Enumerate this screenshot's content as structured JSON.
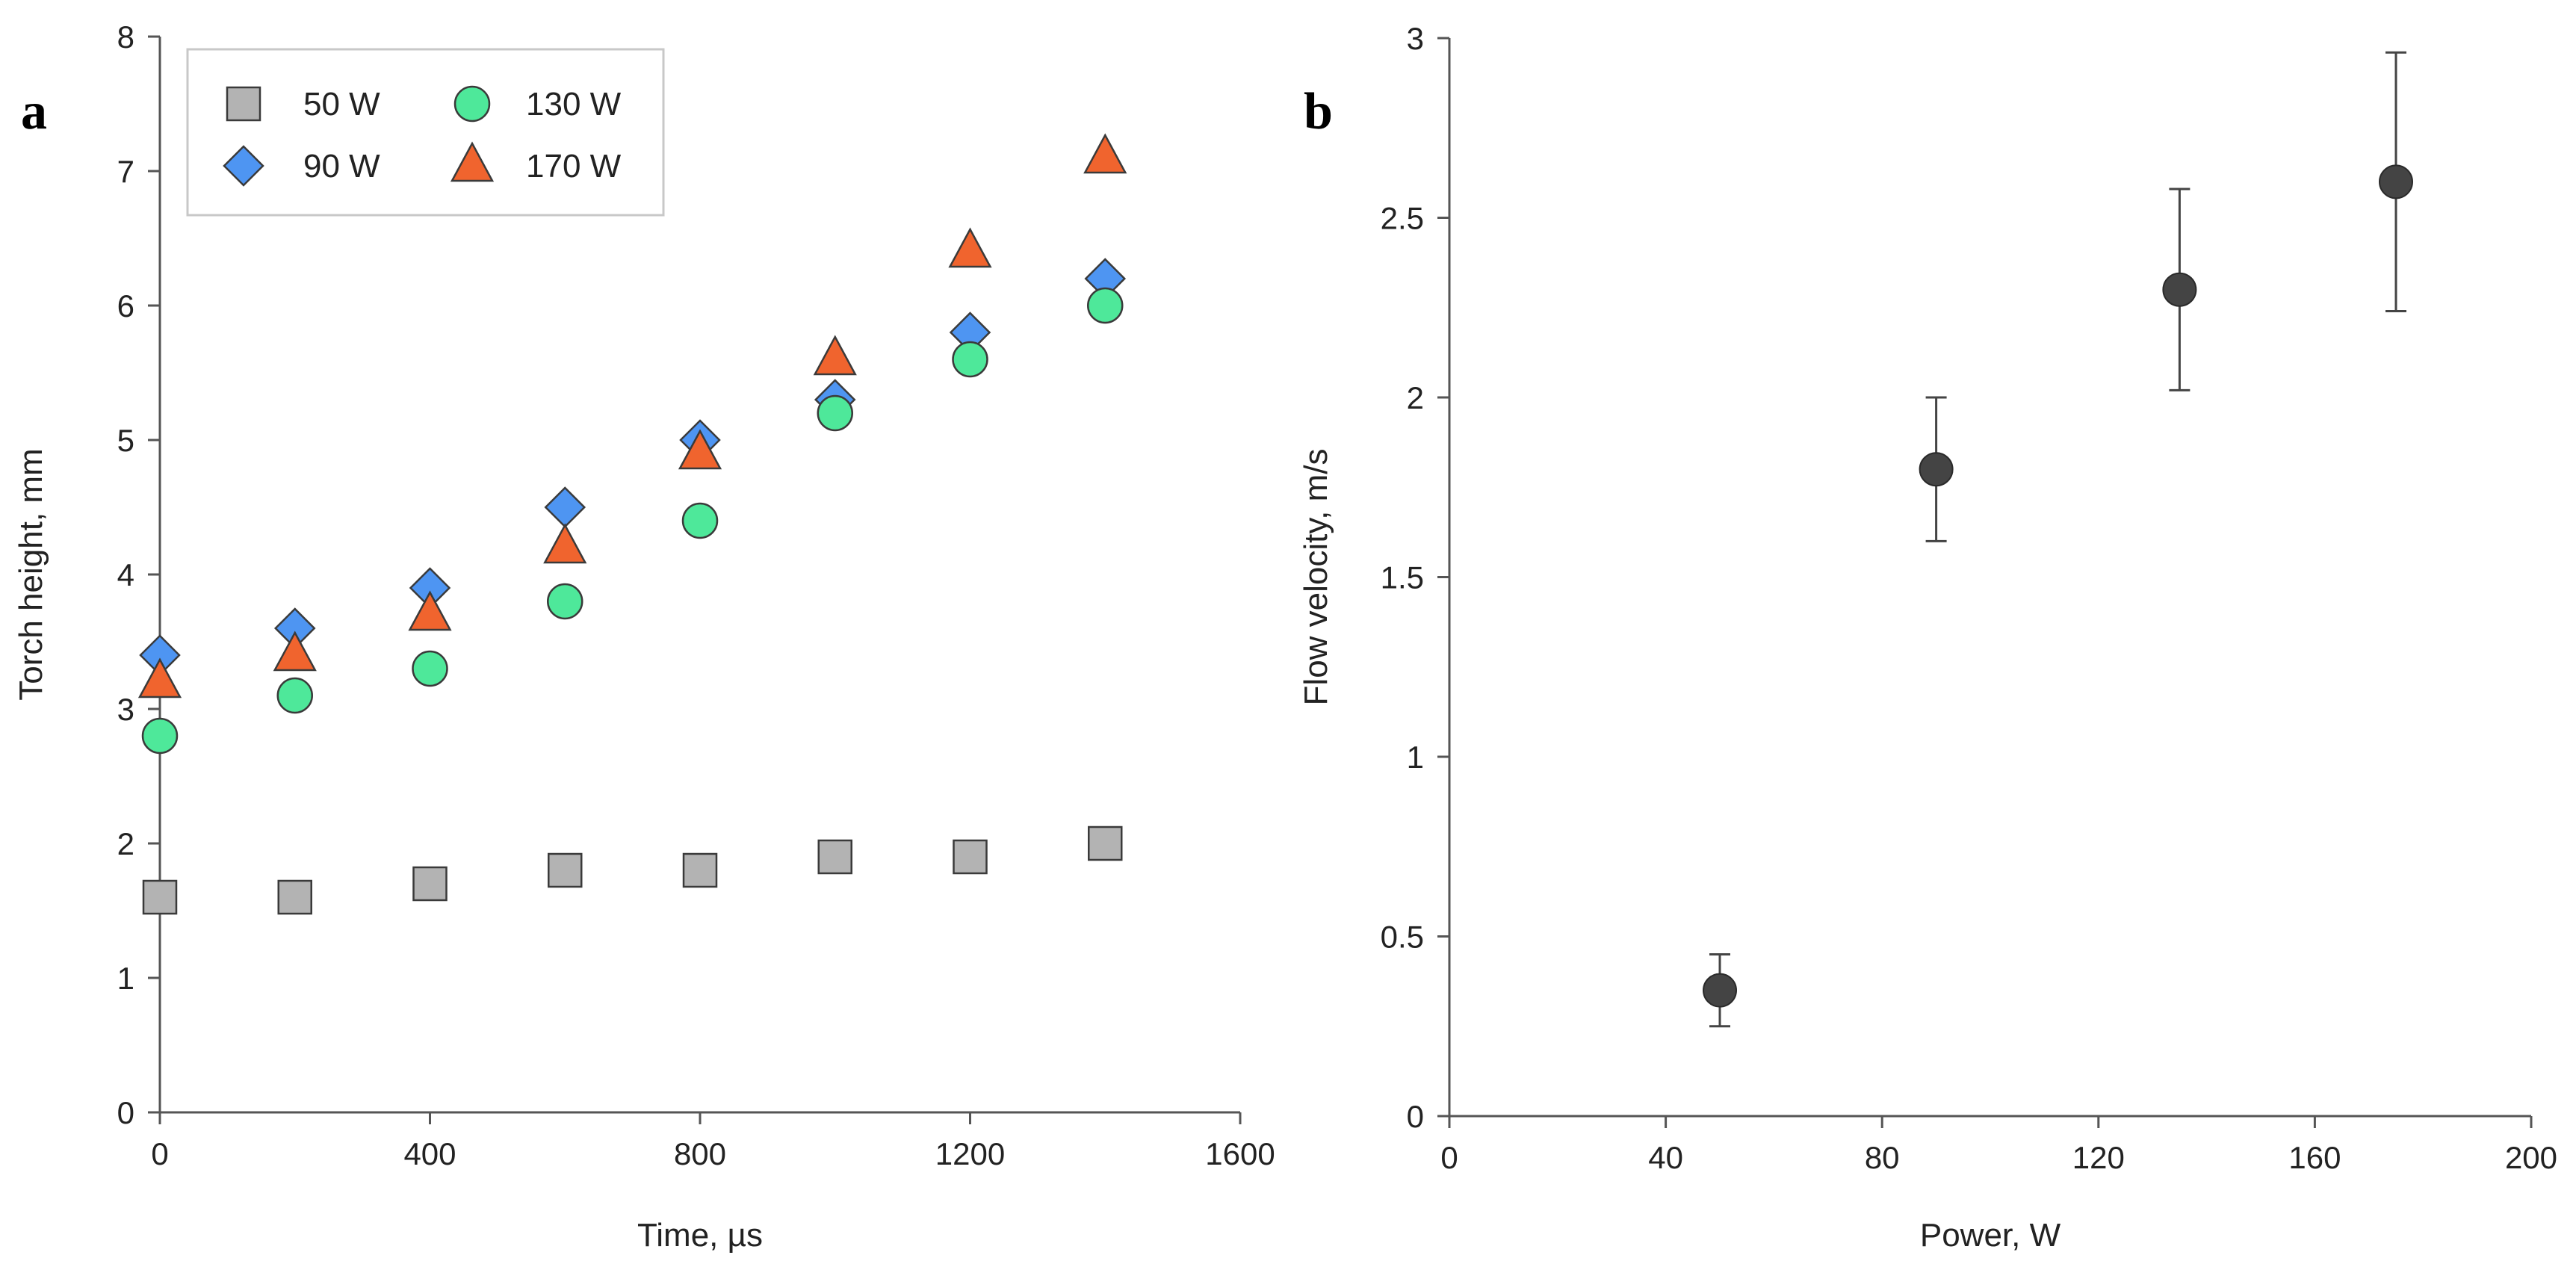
{
  "chart_data": [
    {
      "panel": "a",
      "type": "scatter",
      "title": "",
      "xlabel": "Time, µs",
      "ylabel": "Torch height, mm",
      "xlim": [
        0,
        1600
      ],
      "ylim": [
        0,
        8
      ],
      "x_ticks": [
        0,
        400,
        800,
        1200,
        1600
      ],
      "y_ticks": [
        0,
        1,
        2,
        3,
        4,
        5,
        6,
        7,
        8
      ],
      "grid": false,
      "legend_position": "top-left",
      "x": [
        0,
        200,
        400,
        600,
        800,
        1000,
        1200,
        1400
      ],
      "series": [
        {
          "name": "50 W",
          "marker": "square",
          "color": "#b3b3b3",
          "values": [
            1.6,
            1.6,
            1.7,
            1.8,
            1.8,
            1.9,
            1.9,
            2.0
          ]
        },
        {
          "name": "90 W",
          "marker": "diamond",
          "color": "#4e95f2",
          "values": [
            3.4,
            3.6,
            3.9,
            4.5,
            5.0,
            5.3,
            5.8,
            6.2
          ]
        },
        {
          "name": "130 W",
          "marker": "circle",
          "color": "#4ee89a",
          "values": [
            2.8,
            3.1,
            3.3,
            3.8,
            4.4,
            5.2,
            5.6,
            6.0
          ]
        },
        {
          "name": "170 W",
          "marker": "triangle",
          "color": "#f0642e",
          "values": [
            3.2,
            3.4,
            3.7,
            4.2,
            4.9,
            5.6,
            6.4,
            7.1
          ]
        }
      ]
    },
    {
      "panel": "b",
      "type": "scatter",
      "title": "",
      "xlabel": "Power, W",
      "ylabel": "Flow velocity, m/s",
      "xlim": [
        0,
        200
      ],
      "ylim": [
        0,
        3
      ],
      "x_ticks": [
        0,
        40,
        80,
        120,
        160,
        200
      ],
      "y_ticks": [
        0,
        0.5,
        1,
        1.5,
        2,
        2.5,
        3
      ],
      "grid": false,
      "marker_color": "#444444",
      "points": [
        {
          "x": 50,
          "y": 0.35,
          "err_low": 0.25,
          "err_high": 0.45
        },
        {
          "x": 90,
          "y": 1.8,
          "err_low": 1.6,
          "err_high": 2.0
        },
        {
          "x": 135,
          "y": 2.3,
          "err_low": 2.02,
          "err_high": 2.58
        },
        {
          "x": 175,
          "y": 2.6,
          "err_low": 2.24,
          "err_high": 2.96
        }
      ]
    }
  ]
}
